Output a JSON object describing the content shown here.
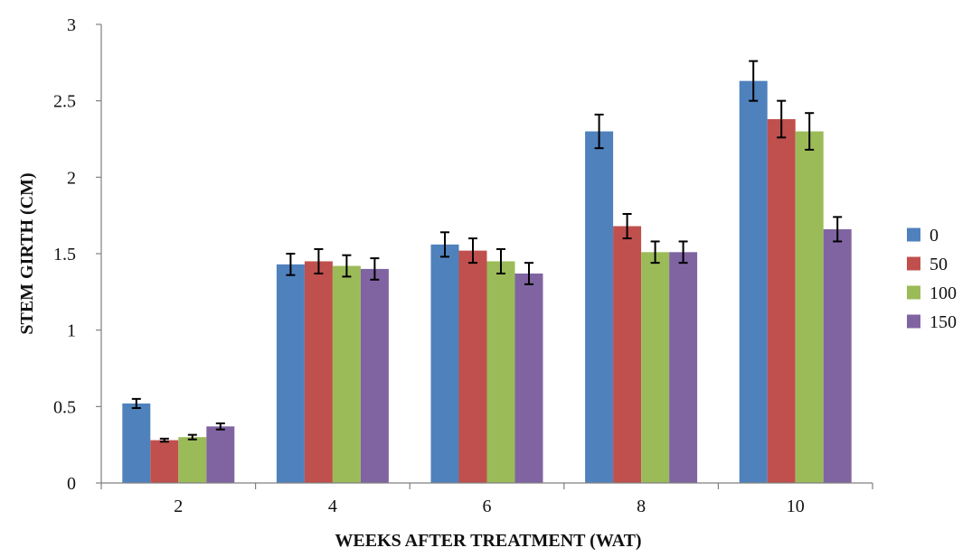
{
  "chart_data": {
    "type": "bar",
    "title": "",
    "xlabel": "WEEKS AFTER TREATMENT (WAT)",
    "ylabel": "STEM GIRTH (CM)",
    "categories": [
      "2",
      "4",
      "6",
      "8",
      "10"
    ],
    "ylim": [
      0,
      3
    ],
    "yticks": [
      0,
      0.5,
      1,
      1.5,
      2,
      2.5,
      3
    ],
    "ytick_labels": [
      "0",
      "0.5",
      "1",
      "1.5",
      "2",
      "2.5",
      "3"
    ],
    "grid": false,
    "legend_position": "right",
    "error_bars": true,
    "series": [
      {
        "name": "0",
        "color": "#4F81BD",
        "values": [
          0.52,
          1.43,
          1.56,
          2.3,
          2.63
        ],
        "errors": [
          0.03,
          0.07,
          0.08,
          0.11,
          0.13
        ]
      },
      {
        "name": "50",
        "color": "#C0504D",
        "values": [
          0.28,
          1.45,
          1.52,
          1.68,
          2.38
        ],
        "errors": [
          0.01,
          0.08,
          0.08,
          0.08,
          0.12
        ]
      },
      {
        "name": "100",
        "color": "#9BBB59",
        "values": [
          0.3,
          1.42,
          1.45,
          1.51,
          2.3
        ],
        "errors": [
          0.015,
          0.07,
          0.08,
          0.07,
          0.12
        ]
      },
      {
        "name": "150",
        "color": "#8064A2",
        "values": [
          0.37,
          1.4,
          1.37,
          1.51,
          1.66
        ],
        "errors": [
          0.02,
          0.07,
          0.07,
          0.07,
          0.08
        ]
      }
    ]
  }
}
